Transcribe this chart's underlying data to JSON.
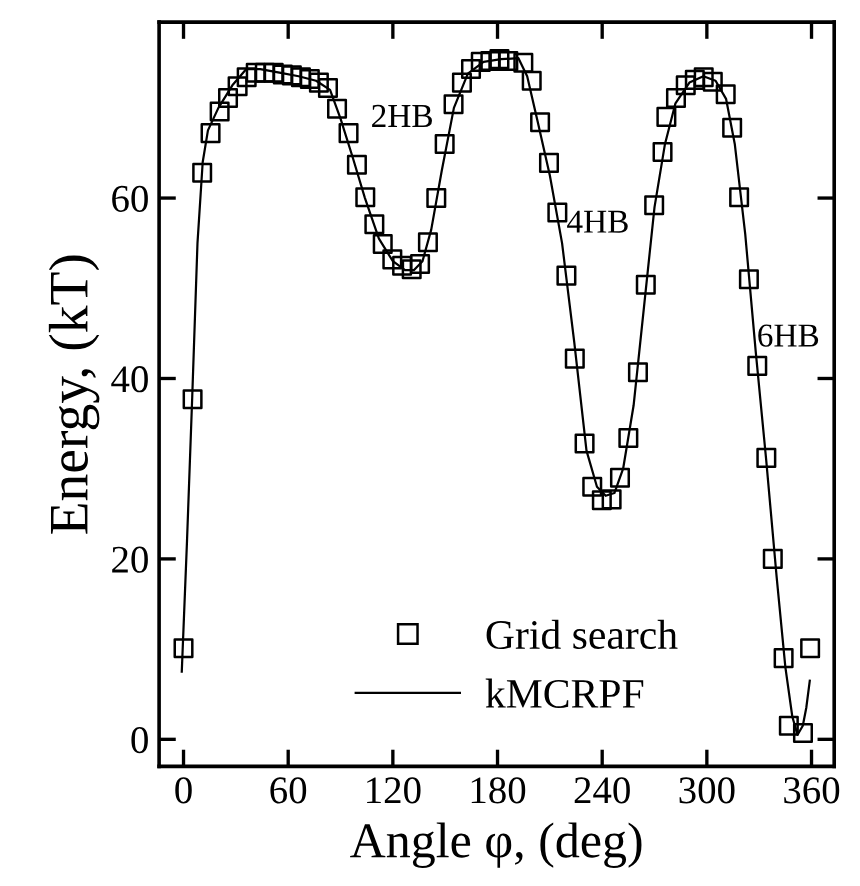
{
  "chart_data": {
    "type": "scatter",
    "xlabel": "Angle φ, (deg)",
    "ylabel": "Energy, (kT)",
    "xlim": [
      -14,
      373
    ],
    "ylim": [
      -3,
      79.5
    ],
    "xticks": [
      0,
      60,
      120,
      180,
      240,
      300,
      360
    ],
    "yticks": [
      0,
      20,
      40,
      60
    ],
    "legend": "bottom",
    "grid": false,
    "annotations": [
      "2HB",
      "4HB",
      "6HB"
    ],
    "series": [
      {
        "name": "Grid search",
        "marker": "square",
        "color": "#000000",
        "x": [
          0,
          5.2,
          10.7,
          15.5,
          20.7,
          25.5,
          31,
          36.2,
          41.4,
          46.6,
          51.7,
          56.9,
          62.1,
          67.3,
          72.4,
          77.6,
          82.8,
          88,
          94.6,
          99.4,
          104.2,
          109.4,
          114.2,
          119.7,
          125.3,
          130.8,
          135.6,
          140.1,
          144.9,
          149.7,
          154.8,
          159.6,
          164.8,
          170.4,
          175.9,
          181.1,
          186.2,
          194.8,
          199.6,
          204.4,
          209.5,
          214.3,
          219.5,
          224.3,
          229.9,
          234.3,
          239.8,
          245.4,
          250.2,
          255,
          260.5,
          265,
          269.8,
          274.6,
          276.8,
          282.3,
          287.9,
          293.1,
          298.2,
          303.4,
          310.8,
          314.5,
          318.5,
          324.1,
          328.9,
          334.1,
          337.8,
          344,
          347,
          355.1,
          359.2
        ],
        "values": [
          10.1,
          37.7,
          62.8,
          67.2,
          69.6,
          71.1,
          72.4,
          73.4,
          73.9,
          73.9,
          73.9,
          73.7,
          73.6,
          73.4,
          73.2,
          72.8,
          72.2,
          69.9,
          67.2,
          63.7,
          60.1,
          57.1,
          54.9,
          53.2,
          52.5,
          52.1,
          52.7,
          55.1,
          60,
          66,
          70.4,
          72.8,
          74.3,
          75.1,
          75.2,
          75.4,
          75.2,
          75,
          73,
          68.4,
          63.9,
          58.4,
          51.4,
          42.2,
          32.8,
          28,
          26.5,
          26.6,
          29,
          33.4,
          40.7,
          50.4,
          59.2,
          65.1,
          69,
          71.1,
          72.5,
          73.1,
          73.4,
          72.9,
          71.5,
          67.8,
          60.1,
          51,
          41.4,
          31.2,
          20,
          9,
          1.5,
          0.7,
          10.1
        ]
      },
      {
        "name": "kMCRPF",
        "type": "line",
        "marker": "none",
        "line_style": "solid",
        "color": "#000000",
        "x": [
          -1,
          2,
          5,
          8,
          11,
          14,
          20,
          28,
          36,
          44,
          55,
          66,
          76,
          84,
          90,
          97,
          104,
          112,
          120,
          127,
          132,
          137,
          142,
          148,
          155,
          163,
          172,
          182,
          192,
          197,
          203,
          210,
          217,
          224,
          231,
          237,
          242,
          247,
          252,
          258,
          264,
          270,
          276,
          282,
          290,
          298,
          305,
          311,
          316,
          322,
          328,
          334,
          340,
          345,
          349,
          352,
          355,
          357,
          359
        ],
        "values": [
          7.5,
          22,
          38,
          55,
          64,
          67.5,
          70,
          72.5,
          74.3,
          74.3,
          73.9,
          73.5,
          73,
          72,
          68.8,
          64.5,
          60,
          55.5,
          53,
          52,
          52,
          53,
          56.5,
          63,
          70,
          73.8,
          75.1,
          75.4,
          75.5,
          73.5,
          68.5,
          62.5,
          55,
          44,
          32,
          28,
          27,
          27.3,
          30,
          37,
          48,
          59,
          66,
          70.5,
          72.8,
          73.5,
          73,
          71,
          66,
          56,
          43,
          31,
          18,
          8,
          2.5,
          0.5,
          1.5,
          3.5,
          6.5
        ]
      }
    ]
  }
}
